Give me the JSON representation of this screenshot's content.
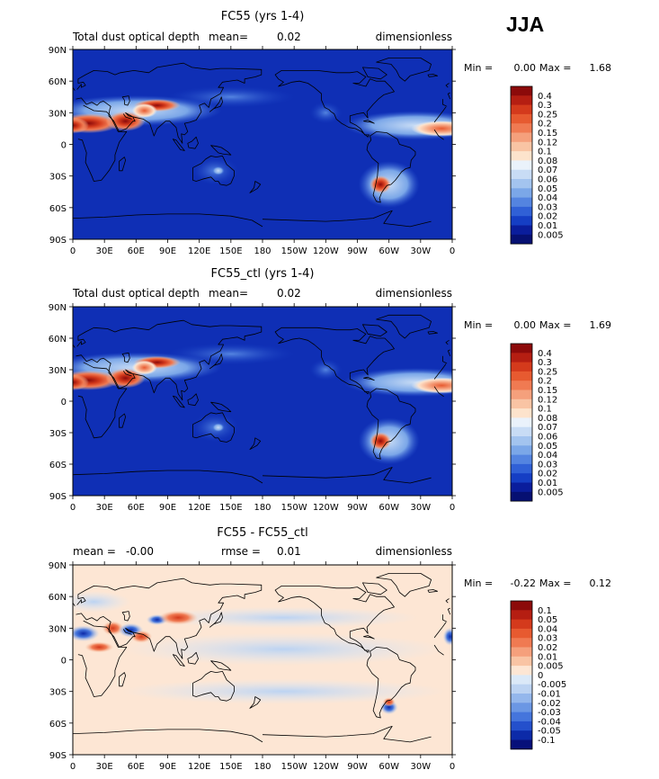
{
  "figure": {
    "season": "JJA"
  },
  "chart_data": [
    {
      "type": "heatmap",
      "title": "FC55 (yrs 1-4)",
      "left_label": "Total dust optical depth",
      "mean_label": "mean=",
      "mean_value": "0.02",
      "units": "dimensionless",
      "min_label": "Min =",
      "min_value": "0.00",
      "max_label": "Max =",
      "max_value": "1.68",
      "xticks": [
        "0",
        "30E",
        "60E",
        "90E",
        "120E",
        "150E",
        "180",
        "150W",
        "120W",
        "90W",
        "60W",
        "30W",
        "0"
      ],
      "yticks": [
        "90N",
        "60N",
        "30N",
        "0",
        "30S",
        "60S",
        "90S"
      ],
      "colorbar_levels": [
        "0.4",
        "0.3",
        "0.25",
        "0.2",
        "0.15",
        "0.12",
        "0.1",
        "0.08",
        "0.07",
        "0.06",
        "0.05",
        "0.04",
        "0.03",
        "0.02",
        "0.01",
        "0.005"
      ],
      "colorbar_colors": [
        "#8c0a0a",
        "#b51e12",
        "#d43a1c",
        "#e75a30",
        "#f07a52",
        "#f5a07c",
        "#f9c4a4",
        "#fde3cc",
        "#eaf2fb",
        "#c8dcf5",
        "#a3c4ef",
        "#7ba7e8",
        "#5484e0",
        "#3060d6",
        "#153ec4",
        "#0a1d9c",
        "#061072"
      ],
      "ocean_color": "#0f2fb5"
    },
    {
      "type": "heatmap",
      "title": "FC55_ctl (yrs 1-4)",
      "left_label": "Total dust optical depth",
      "mean_label": "mean=",
      "mean_value": "0.02",
      "units": "dimensionless",
      "min_label": "Min =",
      "min_value": "0.00",
      "max_label": "Max =",
      "max_value": "1.69",
      "xticks": [
        "0",
        "30E",
        "60E",
        "90E",
        "120E",
        "150E",
        "180",
        "150W",
        "120W",
        "90W",
        "60W",
        "30W",
        "0"
      ],
      "yticks": [
        "90N",
        "60N",
        "30N",
        "0",
        "30S",
        "60S",
        "90S"
      ],
      "colorbar_levels": [
        "0.4",
        "0.3",
        "0.25",
        "0.2",
        "0.15",
        "0.12",
        "0.1",
        "0.08",
        "0.07",
        "0.06",
        "0.05",
        "0.04",
        "0.03",
        "0.02",
        "0.01",
        "0.005"
      ],
      "colorbar_colors": [
        "#8c0a0a",
        "#b51e12",
        "#d43a1c",
        "#e75a30",
        "#f07a52",
        "#f5a07c",
        "#f9c4a4",
        "#fde3cc",
        "#eaf2fb",
        "#c8dcf5",
        "#a3c4ef",
        "#7ba7e8",
        "#5484e0",
        "#3060d6",
        "#153ec4",
        "#0a1d9c",
        "#061072"
      ],
      "ocean_color": "#0f2fb5"
    },
    {
      "type": "heatmap",
      "title": "FC55 - FC55_ctl",
      "left_label": "",
      "mean_label": "mean =",
      "mean_value": "-0.00",
      "rmse_label": "rmse =",
      "rmse_value": "0.01",
      "units": "dimensionless",
      "min_label": "Min =",
      "min_value": "-0.22",
      "max_label": "Max =",
      "max_value": "0.12",
      "xticks": [
        "0",
        "30E",
        "60E",
        "90E",
        "120E",
        "150E",
        "180",
        "150W",
        "120W",
        "90W",
        "60W",
        "30W",
        "0"
      ],
      "yticks": [
        "90N",
        "60N",
        "30N",
        "0",
        "30S",
        "60S",
        "90S"
      ],
      "colorbar_levels": [
        "0.1",
        "0.05",
        "0.04",
        "0.03",
        "0.02",
        "0.01",
        "0.005",
        "0",
        "-0.005",
        "-0.01",
        "-0.02",
        "-0.03",
        "-0.04",
        "-0.05",
        "-0.1"
      ],
      "colorbar_colors": [
        "#8c0a0a",
        "#b51e12",
        "#d43a1c",
        "#e75a30",
        "#f07a52",
        "#f5a07c",
        "#f9c4a4",
        "#fde6d4",
        "#dbe9f8",
        "#bcd3f2",
        "#94b7ec",
        "#6b97e4",
        "#4575dc",
        "#2450cc",
        "#0c2aa8",
        "#06107a"
      ],
      "ocean_color": "#fde6d4"
    }
  ]
}
